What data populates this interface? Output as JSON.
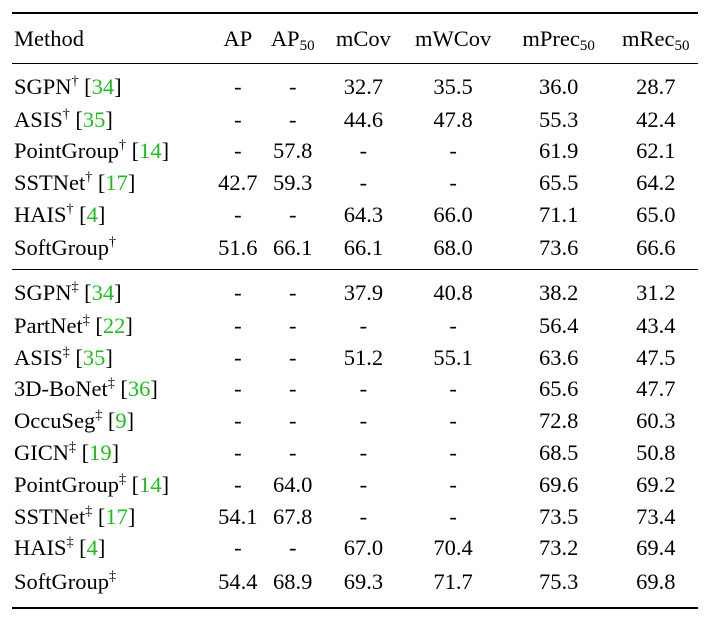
{
  "table": {
    "headers": {
      "method": "Method",
      "ap": "AP",
      "ap50_main": "AP",
      "ap50_sub": "50",
      "mcov": "mCov",
      "mwcov": "mWCov",
      "mprec_main": "mPrec",
      "mprec_sub": "50",
      "mrec_main": "mRec",
      "mrec_sub": "50"
    },
    "group1": [
      {
        "name": "SGPN",
        "mark": "†",
        "cite": "34",
        "ap": "-",
        "ap50": "-",
        "mcov": "32.7",
        "mwcov": "35.5",
        "mprec": "36.0",
        "mrec": "28.7"
      },
      {
        "name": "ASIS",
        "mark": "†",
        "cite": "35",
        "ap": "-",
        "ap50": "-",
        "mcov": "44.6",
        "mwcov": "47.8",
        "mprec": "55.3",
        "mrec": "42.4"
      },
      {
        "name": "PointGroup",
        "mark": "†",
        "cite": "14",
        "ap": "-",
        "ap50": "57.8",
        "mcov": "-",
        "mwcov": "-",
        "mprec": "61.9",
        "mrec": "62.1"
      },
      {
        "name": "SSTNet",
        "mark": "†",
        "cite": "17",
        "ap": "42.7",
        "ap50": "59.3",
        "mcov": "-",
        "mwcov": "-",
        "mprec": "65.5",
        "mrec": "64.2"
      },
      {
        "name": "HAIS",
        "mark": "†",
        "cite": "4",
        "ap": "-",
        "ap50": "-",
        "mcov": "64.3",
        "mwcov": "66.0",
        "mprec": "71.1",
        "mrec": "65.0"
      },
      {
        "name": "SoftGroup",
        "mark": "†",
        "cite": "",
        "ap": "51.6",
        "ap50": "66.1",
        "mcov": "66.1",
        "mwcov": "68.0",
        "mprec": "73.6",
        "mrec": "66.6"
      }
    ],
    "group2": [
      {
        "name": "SGPN",
        "mark": "‡",
        "cite": "34",
        "ap": "-",
        "ap50": "-",
        "mcov": "37.9",
        "mwcov": "40.8",
        "mprec": "38.2",
        "mrec": "31.2"
      },
      {
        "name": "PartNet",
        "mark": "‡",
        "cite": "22",
        "ap": "-",
        "ap50": "-",
        "mcov": "-",
        "mwcov": "-",
        "mprec": "56.4",
        "mrec": "43.4"
      },
      {
        "name": "ASIS",
        "mark": "‡",
        "cite": "35",
        "ap": "-",
        "ap50": "-",
        "mcov": "51.2",
        "mwcov": "55.1",
        "mprec": "63.6",
        "mrec": "47.5"
      },
      {
        "name": "3D-BoNet",
        "mark": "‡",
        "cite": "36",
        "ap": "-",
        "ap50": "-",
        "mcov": "-",
        "mwcov": "-",
        "mprec": "65.6",
        "mrec": "47.7"
      },
      {
        "name": "OccuSeg",
        "mark": "‡",
        "cite": "9",
        "ap": "-",
        "ap50": "-",
        "mcov": "-",
        "mwcov": "-",
        "mprec": "72.8",
        "mrec": "60.3"
      },
      {
        "name": "GICN",
        "mark": "‡",
        "cite": "19",
        "ap": "-",
        "ap50": "-",
        "mcov": "-",
        "mwcov": "-",
        "mprec": "68.5",
        "mrec": "50.8"
      },
      {
        "name": "PointGroup",
        "mark": "‡",
        "cite": "14",
        "ap": "-",
        "ap50": "64.0",
        "mcov": "-",
        "mwcov": "-",
        "mprec": "69.6",
        "mrec": "69.2"
      },
      {
        "name": "SSTNet",
        "mark": "‡",
        "cite": "17",
        "ap": "54.1",
        "ap50": "67.8",
        "mcov": "-",
        "mwcov": "-",
        "mprec": "73.5",
        "mrec": "73.4"
      },
      {
        "name": "HAIS",
        "mark": "‡",
        "cite": "4",
        "ap": "-",
        "ap50": "-",
        "mcov": "67.0",
        "mwcov": "70.4",
        "mprec": "73.2",
        "mrec": "69.4"
      },
      {
        "name": "SoftGroup",
        "mark": "‡",
        "cite": "",
        "ap": "54.4",
        "ap50": "68.9",
        "mcov": "69.3",
        "mwcov": "71.7",
        "mprec": "75.3",
        "mrec": "69.8"
      }
    ],
    "citation_color": "#22bb22"
  }
}
